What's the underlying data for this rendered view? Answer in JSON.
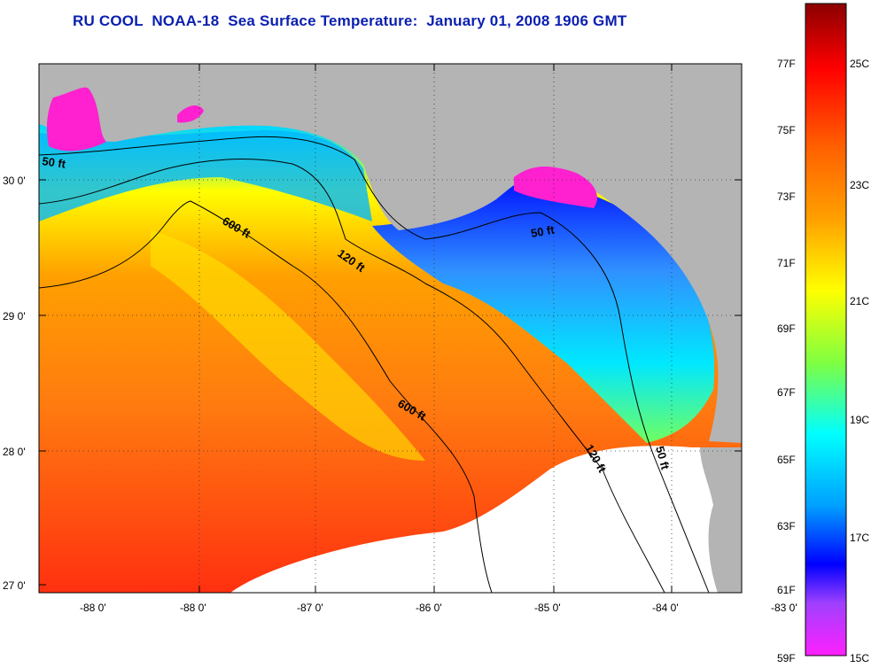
{
  "title": "RU COOL  NOAA-18  Sea Surface Temperature:  January 01, 2008 1906 GMT",
  "map": {
    "lat_ticks": [
      "30 0'",
      "29 0'",
      "28 0'",
      "27 0'"
    ],
    "lon_ticks": [
      "-88 0'",
      "-87 0'",
      "-86 0'",
      "-85 0'",
      "-84 0'",
      "-83 0'"
    ],
    "isobath_labels": [
      "50 ft",
      "600 ft",
      "120 ft",
      "50 ft",
      "600 ft",
      "120 ft",
      "50 ft"
    ],
    "colors": {
      "land": "#b4b4b4",
      "no_data": "#ffffff",
      "contour": "#000000"
    }
  },
  "colorbar": {
    "fahrenheit_labels": [
      "77F",
      "75F",
      "73F",
      "71F",
      "69F",
      "67F",
      "65F",
      "63F",
      "61F",
      "59F"
    ],
    "celsius_labels": [
      "25C",
      "23C",
      "21C",
      "19C",
      "17C",
      "15C"
    ],
    "gradient": [
      "#8b0000",
      "#ff0000",
      "#ff6000",
      "#ffa000",
      "#ffff00",
      "#80ff40",
      "#00ffff",
      "#00a0ff",
      "#0000ff",
      "#a040ff",
      "#ff20ff"
    ]
  }
}
